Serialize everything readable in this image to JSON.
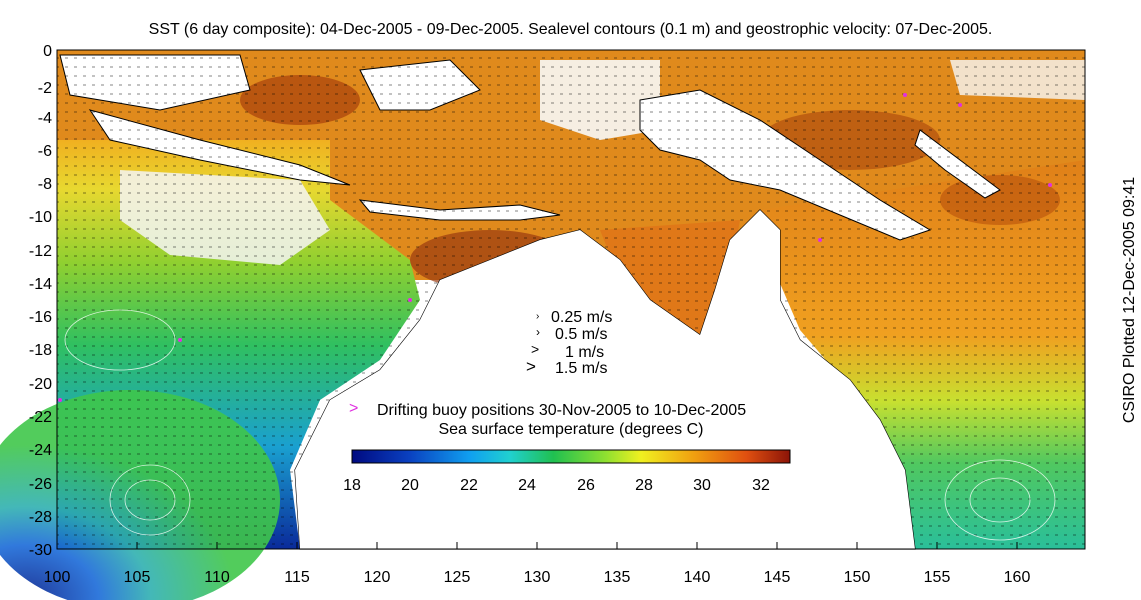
{
  "title": "SST (6 day composite): 04-Dec-2005 - 09-Dec-2005. Sealevel contours (0.1 m) and geostrophic velocity: 07-Dec-2005.",
  "side_label": "CSIRO Plotted 12-Dec-2005 09:41",
  "x_ticks": [
    "100",
    "105",
    "110",
    "115",
    "120",
    "125",
    "130",
    "135",
    "140",
    "145",
    "150",
    "155",
    "160"
  ],
  "y_ticks": [
    "0",
    "-2",
    "-4",
    "-6",
    "-8",
    "-10",
    "-12",
    "-14",
    "-16",
    "-18",
    "-20",
    "-22",
    "-24",
    "-26",
    "-28",
    "-30"
  ],
  "velocity_legend": [
    "0.25 m/s",
    "0.5 m/s",
    "1 m/s",
    "1.5 m/s"
  ],
  "buoy_legend": "Drifting buoy positions 30-Nov-2005 to 10-Dec-2005",
  "colorbar": {
    "title": "Sea surface temperature (degrees C)",
    "ticks": [
      "18",
      "20",
      "22",
      "24",
      "26",
      "28",
      "30",
      "32"
    ],
    "range": [
      18,
      33
    ]
  },
  "map_extent": {
    "lon": [
      100,
      164
    ],
    "lat": [
      -30,
      0
    ]
  },
  "colors": {
    "cold": "#0a2a9a",
    "cool": "#1e8ee0",
    "mid": "#2fc060",
    "warm": "#f0c020",
    "hot": "#e07010",
    "hottest": "#8b1a0a",
    "buoy": "#e030e0",
    "land": "#ffffff"
  }
}
